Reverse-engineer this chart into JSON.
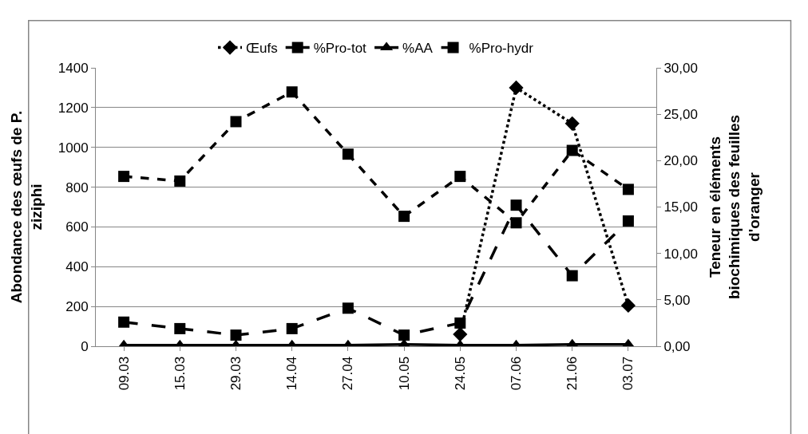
{
  "chart_data": {
    "type": "line",
    "categories": [
      "09.03",
      "15.03",
      "29.03",
      "14.04",
      "27.04",
      "10.05",
      "24.05",
      "07.06",
      "21.06",
      "03.07"
    ],
    "ylabel": "Abondance des œufs de P.\nziziphi",
    "y2label": "Teneur en éléments\nbiochimiques des feuilles\nd'oranger",
    "series": [
      {
        "name": "Œufs",
        "color": "#000000",
        "marker": "diamond",
        "line_style": "dotted",
        "values": [
          null,
          null,
          null,
          null,
          null,
          null,
          60,
          1300,
          1120,
          205
        ]
      },
      {
        "name": "%Pro-tot",
        "color": "#000000",
        "marker": "square",
        "line_style": "dashed",
        "axis": "y2",
        "values": [
          18.3,
          17.8,
          24.2,
          27.4,
          20.7,
          14.0,
          18.3,
          13.3,
          21.1,
          16.9
        ]
      },
      {
        "name": "%AA",
        "color": "#000000",
        "marker": "triangle",
        "line_style": "solid",
        "axis": "y2",
        "values": [
          0.1,
          0.1,
          0.1,
          0.1,
          0.1,
          0.2,
          0.1,
          0.1,
          0.2,
          0.2
        ]
      },
      {
        "name": "%Pro-hydr",
        "color": "#000000",
        "marker": "square",
        "line_style": "longdash",
        "axis": "y2",
        "values": [
          2.6,
          1.9,
          1.2,
          1.9,
          4.1,
          1.2,
          2.5,
          15.2,
          7.6,
          13.5
        ]
      }
    ],
    "ylim": [
      0,
      1400
    ],
    "yticks": [
      0,
      200,
      400,
      600,
      800,
      1000,
      1200,
      1400
    ],
    "y2lim": [
      0,
      30
    ],
    "y2ticks": [
      {
        "value": 0,
        "label": "0,00"
      },
      {
        "value": 5,
        "label": "5,00"
      },
      {
        "value": 10,
        "label": "10,00"
      },
      {
        "value": 15,
        "label": "15,00"
      },
      {
        "value": 20,
        "label": "20,00"
      },
      {
        "value": 25,
        "label": "25,00"
      },
      {
        "value": 30,
        "label": "30,00"
      }
    ],
    "grid": "y",
    "legend": "top"
  }
}
